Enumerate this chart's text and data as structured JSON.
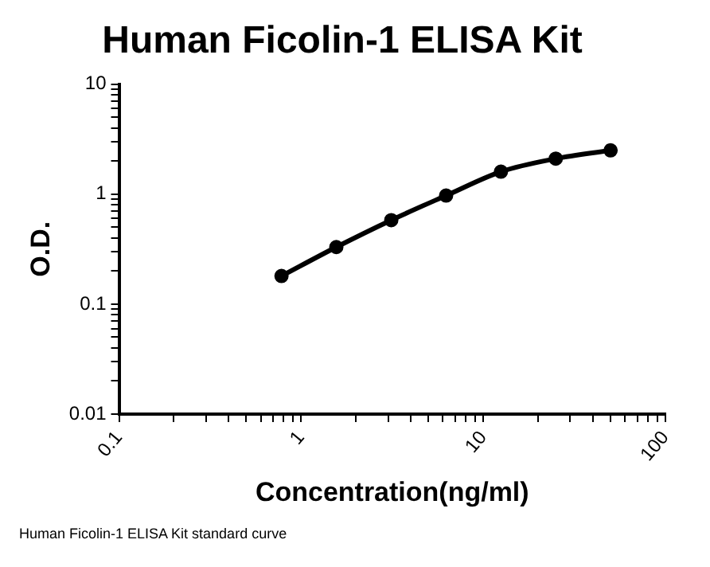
{
  "chart_data": {
    "type": "line",
    "title": "Human Ficolin-1 ELISA Kit",
    "xlabel": "Concentration(ng/ml)",
    "ylabel": "O.D.",
    "annotations": [
      "Human Ficolin-1 ELISA Kit standard curve"
    ],
    "x": [
      0.78,
      1.56,
      3.125,
      6.25,
      12.5,
      25,
      50
    ],
    "series": [
      {
        "color": "#000000",
        "values": [
          0.18,
          0.33,
          0.58,
          0.97,
          1.6,
          2.1,
          2.5
        ]
      }
    ],
    "log": "xy",
    "marker": "circle",
    "line_style": "solid",
    "grid": false,
    "legend": false,
    "xlim": [
      0.1,
      100
    ],
    "ylim": [
      0.01,
      10
    ],
    "xticks": [
      0.1,
      {
        "value": 0.2,
        "label": null
      },
      {
        "value": 0.3,
        "label": null
      },
      {
        "value": 0.4,
        "label": null
      },
      {
        "value": 0.5,
        "label": null
      },
      {
        "value": 0.6,
        "label": null
      },
      {
        "value": 0.7,
        "label": null
      },
      {
        "value": 0.8,
        "label": null
      },
      {
        "value": 0.9,
        "label": null
      },
      1,
      {
        "value": 2,
        "label": null
      },
      {
        "value": 3,
        "label": null
      },
      {
        "value": 4,
        "label": null
      },
      {
        "value": 5,
        "label": null
      },
      {
        "value": 6,
        "label": null
      },
      {
        "value": 7,
        "label": null
      },
      {
        "value": 8,
        "label": null
      },
      {
        "value": 9,
        "label": null
      },
      10,
      {
        "value": 20,
        "label": null
      },
      {
        "value": 30,
        "label": null
      },
      {
        "value": 40,
        "label": null
      },
      {
        "value": 50,
        "label": null
      },
      {
        "value": 60,
        "label": null
      },
      {
        "value": 70,
        "label": null
      },
      {
        "value": 80,
        "label": null
      },
      {
        "value": 90,
        "label": null
      },
      100
    ],
    "yticks": [
      0.01,
      {
        "value": 0.02,
        "label": null
      },
      {
        "value": 0.03,
        "label": null
      },
      {
        "value": 0.04,
        "label": null
      },
      {
        "value": 0.05,
        "label": null
      },
      {
        "value": 0.06,
        "label": null
      },
      {
        "value": 0.07,
        "label": null
      },
      {
        "value": 0.08,
        "label": null
      },
      {
        "value": 0.09,
        "label": null
      },
      0.1,
      {
        "value": 0.2,
        "label": null
      },
      {
        "value": 0.3,
        "label": null
      },
      {
        "value": 0.4,
        "label": null
      },
      {
        "value": 0.5,
        "label": null
      },
      {
        "value": 0.6,
        "label": null
      },
      {
        "value": 0.7,
        "label": null
      },
      {
        "value": 0.8,
        "label": null
      },
      {
        "value": 0.9,
        "label": null
      },
      1,
      {
        "value": 2,
        "label": null
      },
      {
        "value": 3,
        "label": null
      },
      {
        "value": 4,
        "label": null
      },
      {
        "value": 5,
        "label": null
      },
      {
        "value": 6,
        "label": null
      },
      {
        "value": 7,
        "label": null
      },
      {
        "value": 8,
        "label": null
      },
      {
        "value": 9,
        "label": null
      },
      10
    ]
  }
}
